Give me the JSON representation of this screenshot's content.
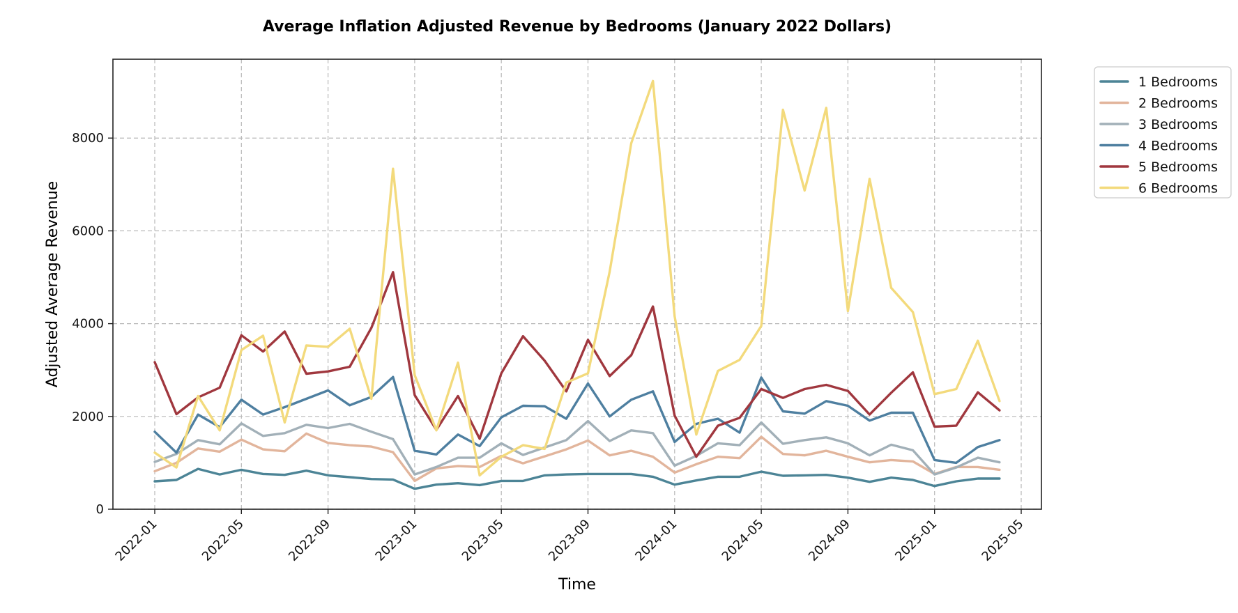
{
  "chart_data": {
    "type": "line",
    "title": "Average Inflation Adjusted Revenue by Bedrooms (January 2022 Dollars)",
    "xlabel": "Time",
    "ylabel": "Adjusted Average Revenue",
    "ylim": [
      0,
      9700
    ],
    "yticks": [
      0,
      2000,
      4000,
      6000,
      8000
    ],
    "xticks": [
      "2022-01",
      "2022-05",
      "2022-09",
      "2023-01",
      "2023-05",
      "2023-09",
      "2024-01",
      "2024-05",
      "2024-09",
      "2025-01",
      "2025-05"
    ],
    "x": [
      "2022-01",
      "2022-02",
      "2022-03",
      "2022-04",
      "2022-05",
      "2022-06",
      "2022-07",
      "2022-08",
      "2022-09",
      "2022-10",
      "2022-11",
      "2022-12",
      "2023-01",
      "2023-02",
      "2023-03",
      "2023-04",
      "2023-05",
      "2023-06",
      "2023-07",
      "2023-08",
      "2023-09",
      "2023-10",
      "2023-11",
      "2023-12",
      "2024-01",
      "2024-02",
      "2024-03",
      "2024-04",
      "2024-05",
      "2024-06",
      "2024-07",
      "2024-08",
      "2024-09",
      "2024-10",
      "2024-11",
      "2024-12",
      "2025-01",
      "2025-02",
      "2025-03",
      "2025-04"
    ],
    "grid": true,
    "legend_position": "outside-top-right",
    "series": [
      {
        "name": "1 Bedrooms",
        "color": "#4c8496",
        "values": [
          600,
          630,
          870,
          750,
          850,
          760,
          740,
          830,
          730,
          690,
          650,
          640,
          440,
          530,
          560,
          520,
          610,
          610,
          730,
          750,
          760,
          760,
          760,
          700,
          530,
          620,
          700,
          700,
          810,
          720,
          730,
          740,
          680,
          590,
          680,
          630,
          500,
          600,
          660,
          660
        ]
      },
      {
        "name": "2 Bedrooms",
        "color": "#e2b59c",
        "values": [
          820,
          1000,
          1310,
          1240,
          1500,
          1290,
          1250,
          1630,
          1430,
          1380,
          1350,
          1230,
          610,
          880,
          930,
          910,
          1150,
          990,
          1140,
          1290,
          1480,
          1160,
          1260,
          1130,
          790,
          970,
          1130,
          1100,
          1560,
          1190,
          1160,
          1260,
          1130,
          1010,
          1060,
          1030,
          760,
          910,
          910,
          850
        ]
      },
      {
        "name": "3 Bedrooms",
        "color": "#a2b0b8",
        "values": [
          1020,
          1190,
          1490,
          1400,
          1850,
          1580,
          1640,
          1820,
          1750,
          1840,
          1670,
          1510,
          750,
          910,
          1110,
          1110,
          1420,
          1170,
          1330,
          1490,
          1900,
          1470,
          1700,
          1640,
          940,
          1150,
          1420,
          1380,
          1870,
          1410,
          1490,
          1550,
          1420,
          1160,
          1390,
          1270,
          750,
          900,
          1110,
          1010
        ]
      },
      {
        "name": "4 Bedrooms",
        "color": "#4e7fa0",
        "values": [
          1670,
          1220,
          2040,
          1770,
          2360,
          2040,
          2200,
          2380,
          2560,
          2240,
          2420,
          2850,
          1260,
          1180,
          1610,
          1360,
          1980,
          2230,
          2220,
          1950,
          2710,
          2000,
          2360,
          2540,
          1450,
          1840,
          1950,
          1650,
          2840,
          2110,
          2060,
          2330,
          2230,
          1910,
          2080,
          2080,
          1060,
          1000,
          1340,
          1490
        ]
      },
      {
        "name": "5 Bedrooms",
        "color": "#a0373e",
        "values": [
          3170,
          2050,
          2410,
          2620,
          3750,
          3400,
          3830,
          2920,
          2970,
          3070,
          3910,
          5110,
          2460,
          1710,
          2440,
          1520,
          2930,
          3730,
          3200,
          2540,
          3650,
          2870,
          3320,
          4370,
          2020,
          1130,
          1800,
          1970,
          2590,
          2400,
          2590,
          2680,
          2550,
          2040,
          2510,
          2950,
          1780,
          1800,
          2520,
          2130
        ]
      },
      {
        "name": "6 Bedrooms",
        "color": "#f3da7c",
        "values": [
          1220,
          900,
          2440,
          1700,
          3430,
          3740,
          1870,
          3530,
          3500,
          3890,
          2380,
          7340,
          2890,
          1700,
          3160,
          730,
          1130,
          1380,
          1300,
          2730,
          2930,
          5120,
          7890,
          9230,
          4160,
          1610,
          2980,
          3220,
          3950,
          8610,
          6870,
          8650,
          4270,
          7120,
          4770,
          4250,
          2480,
          2590,
          3630,
          2330
        ]
      }
    ]
  }
}
